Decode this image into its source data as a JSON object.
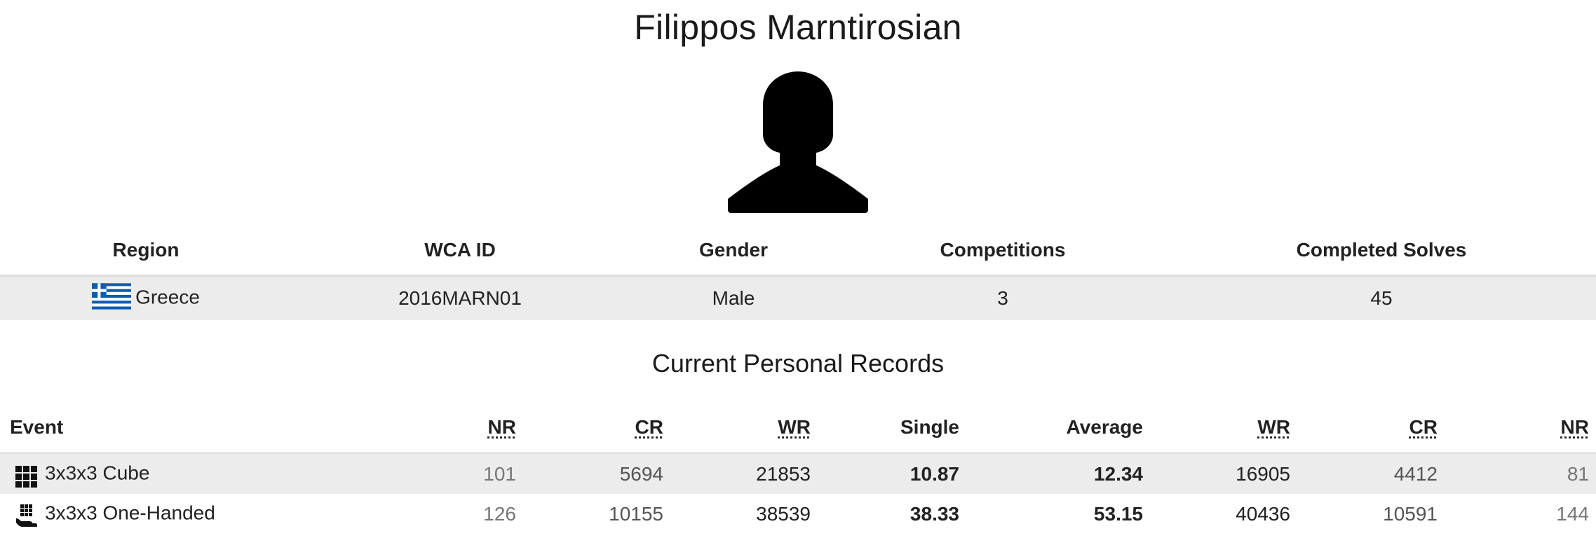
{
  "person": {
    "name": "Filippos Marntirosian"
  },
  "info": {
    "headers": {
      "region": "Region",
      "wca_id": "WCA ID",
      "gender": "Gender",
      "competitions": "Competitions",
      "completed_solves": "Completed Solves"
    },
    "values": {
      "region": "Greece",
      "region_flag_icon": "greece-flag-icon",
      "wca_id": "2016MARN01",
      "gender": "Male",
      "competitions": "3",
      "completed_solves": "45"
    }
  },
  "records": {
    "title": "Current Personal Records",
    "headers": {
      "event": "Event",
      "nr_single": "NR",
      "cr_single": "CR",
      "wr_single": "WR",
      "single": "Single",
      "average": "Average",
      "wr_average": "WR",
      "cr_average": "CR",
      "nr_average": "NR"
    },
    "rows": [
      {
        "event": "3x3x3 Cube",
        "icon": "3x3x3-cube-icon",
        "nr_single": "101",
        "cr_single": "5694",
        "wr_single": "21853",
        "single": "10.87",
        "average": "12.34",
        "wr_average": "16905",
        "cr_average": "4412",
        "nr_average": "81"
      },
      {
        "event": "3x3x3 One-Handed",
        "icon": "3x3x3-one-handed-icon",
        "nr_single": "126",
        "cr_single": "10155",
        "wr_single": "38539",
        "single": "38.33",
        "average": "53.15",
        "wr_average": "40436",
        "cr_average": "10591",
        "nr_average": "144"
      }
    ]
  }
}
